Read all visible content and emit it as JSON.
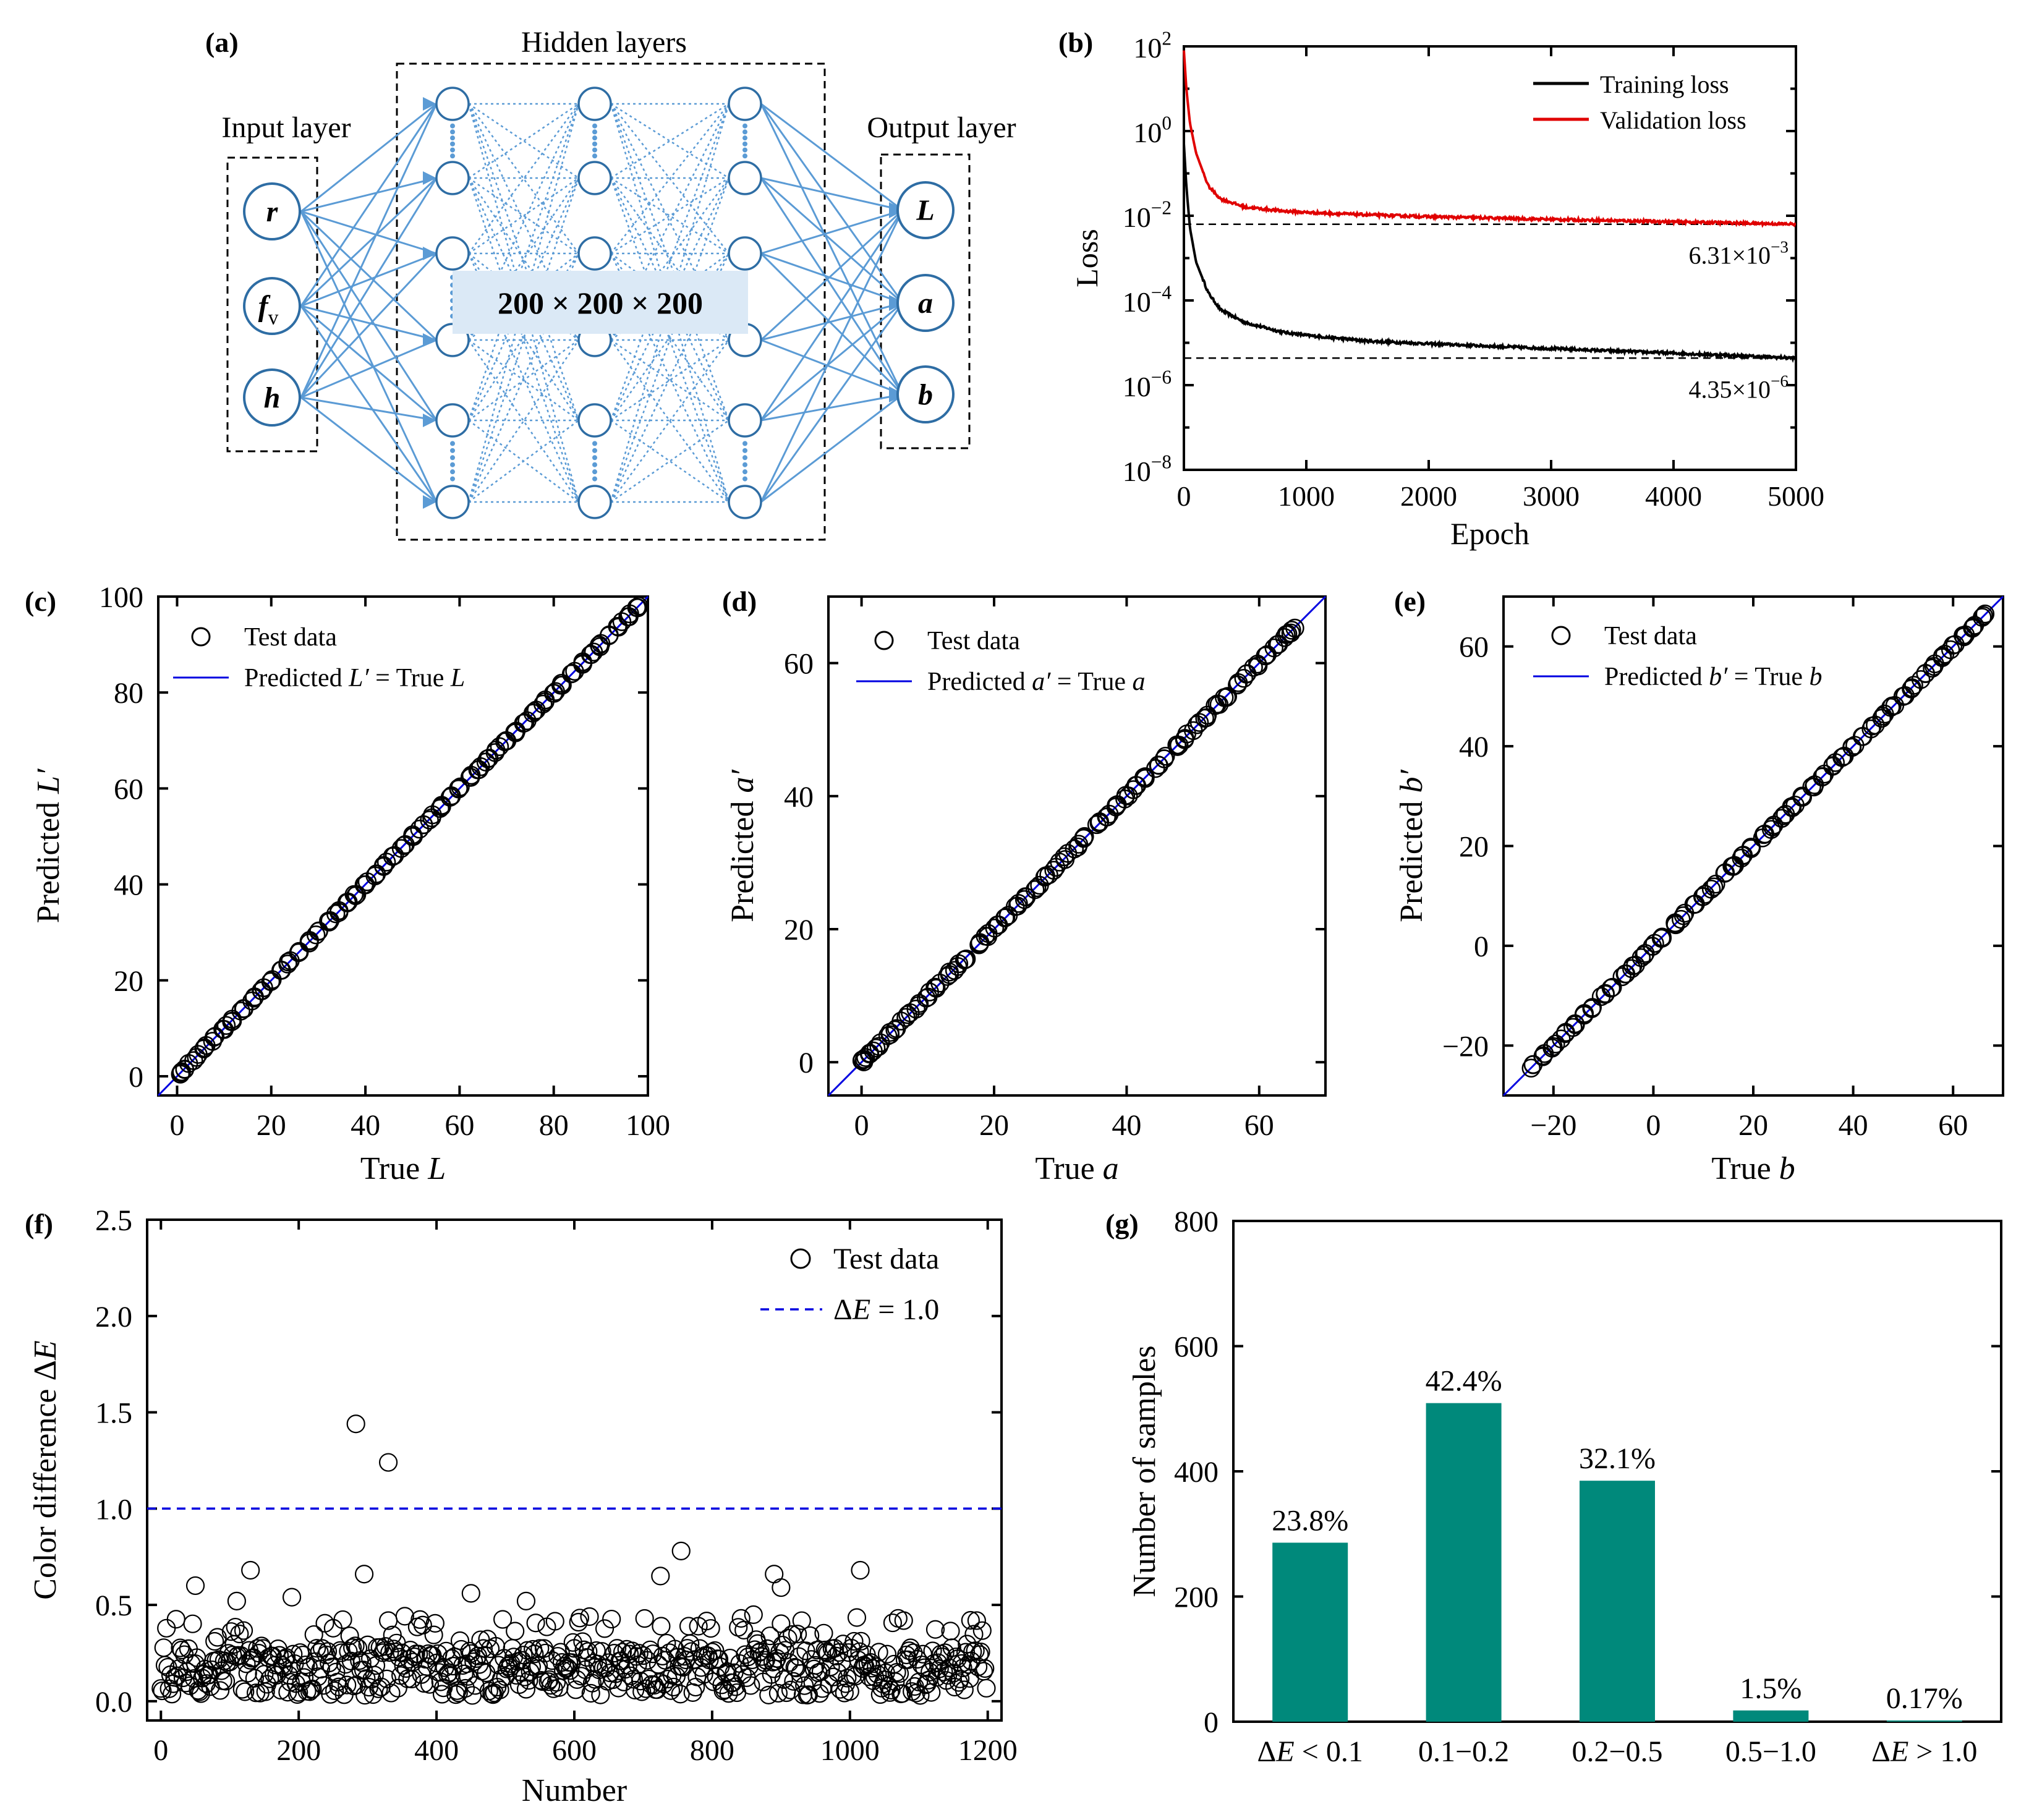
{
  "colors": {
    "net_blue": "#5b9bd5",
    "net_label_bg": "#dbe9f6",
    "training": "#000000",
    "validation": "#e00000",
    "fit_line": "#0000e0",
    "bar": "#00897b"
  },
  "panel_a": {
    "label": "(a)",
    "input_title": "Input layer",
    "hidden_title": "Hidden layers",
    "output_title": "Output layer",
    "hidden_size": "200 × 200 × 200",
    "inputs": [
      {
        "main": "r",
        "sub": ""
      },
      {
        "main": "f",
        "sub": "v"
      },
      {
        "main": "h",
        "sub": ""
      }
    ],
    "outputs": [
      "L",
      "a",
      "b"
    ]
  },
  "chart_data": [
    {
      "id": "b",
      "label": "(b)",
      "type": "line",
      "yscale": "log",
      "xlabel": "Epoch",
      "ylabel": "Loss",
      "xlim": [
        0,
        5000
      ],
      "ylim": [
        1e-08,
        100
      ],
      "xticks": [
        "0",
        "1000",
        "2000",
        "3000",
        "4000",
        "5000"
      ],
      "ytick_exponents": [
        "2",
        "0",
        "-2",
        "-4",
        "-6",
        "-8"
      ],
      "series": [
        {
          "name": "Training loss",
          "color": "#000000",
          "x": [
            0,
            20,
            50,
            100,
            200,
            300,
            500,
            800,
            1000,
            1500,
            2000,
            3000,
            4000,
            5000
          ],
          "y": [
            0.5,
            0.05,
            0.005,
            0.0008,
            0.00015,
            6e-05,
            3e-05,
            1.8e-05,
            1.5e-05,
            1.1e-05,
            9.5e-06,
            7.3e-06,
            5.7e-06,
            4.35e-06
          ]
        },
        {
          "name": "Validation loss",
          "color": "#e00000",
          "x": [
            0,
            20,
            50,
            100,
            200,
            300,
            500,
            800,
            1000,
            1500,
            2000,
            3000,
            4000,
            5000
          ],
          "y": [
            80,
            10,
            1.5,
            0.3,
            0.05,
            0.025,
            0.016,
            0.013,
            0.012,
            0.0105,
            0.0095,
            0.0082,
            0.0072,
            0.00631
          ]
        }
      ],
      "annotations": [
        {
          "value": 0.00631,
          "text": "6.31×10",
          "exp": "−3"
        },
        {
          "value": 4.35e-06,
          "text": "4.35×10",
          "exp": "−6"
        }
      ]
    },
    {
      "id": "c",
      "label": "(c)",
      "type": "scatter",
      "xlabel_main": "True ",
      "xlabel_var": "L",
      "ylabel_main": "Predicted ",
      "ylabel_var": "L′",
      "xlim": [
        -4,
        100
      ],
      "ylim": [
        -4,
        100
      ],
      "xticks": [
        0,
        20,
        40,
        60,
        80,
        100
      ],
      "yticks": [
        0,
        20,
        40,
        60,
        80,
        100
      ],
      "legend": {
        "scatter": "Test data",
        "line_main": "Predicted ",
        "line_var1": "L′",
        "line_mid": " = True ",
        "line_var2": "L"
      },
      "points": [
        0.5,
        2,
        4,
        6,
        8,
        10,
        12,
        14,
        16,
        18,
        20,
        22,
        24,
        26,
        28,
        30,
        32,
        34,
        36,
        38,
        40,
        42,
        44,
        46,
        48,
        50,
        52,
        54,
        56,
        58,
        60,
        62,
        64,
        66,
        68,
        70,
        72,
        74,
        76,
        78,
        80,
        82,
        84,
        86,
        88,
        90,
        92,
        94,
        96,
        98
      ]
    },
    {
      "id": "d",
      "label": "(d)",
      "type": "scatter",
      "xlabel_main": "True ",
      "xlabel_var": "a",
      "ylabel_main": "Predicted ",
      "ylabel_var": "a′",
      "xlim": [
        -5,
        70
      ],
      "ylim": [
        -5,
        70
      ],
      "xticks": [
        0,
        20,
        40,
        60
      ],
      "yticks": [
        0,
        20,
        40,
        60
      ],
      "legend": {
        "scatter": "Test data",
        "line_main": "Predicted ",
        "line_var1": "a′",
        "line_mid": " = True ",
        "line_var2": "a"
      },
      "points": [
        0.2,
        0.8,
        1.5,
        2.5,
        4,
        5.5,
        7,
        8.5,
        10,
        11.5,
        13,
        14.5,
        16,
        17.5,
        19,
        20.5,
        22,
        23.5,
        25,
        26.5,
        28,
        29.5,
        31,
        32.5,
        34,
        35.5,
        37,
        38.5,
        40,
        41.5,
        43,
        44.5,
        46,
        47.5,
        49,
        50.5,
        52,
        53.5,
        55,
        56.5,
        58,
        59.5,
        61,
        62.5,
        64,
        65
      ]
    },
    {
      "id": "e",
      "label": "(e)",
      "type": "scatter",
      "xlabel_main": "True ",
      "xlabel_var": "b",
      "ylabel_main": "Predicted ",
      "ylabel_var": "b′",
      "xlim": [
        -30,
        70
      ],
      "ylim": [
        -30,
        70
      ],
      "xticks": [
        -20,
        0,
        20,
        40,
        60
      ],
      "yticks": [
        -20,
        0,
        20,
        40,
        60
      ],
      "legend": {
        "scatter": "Test data",
        "line_main": "Predicted ",
        "line_var1": "b′",
        "line_mid": " = True ",
        "line_var2": "b"
      },
      "points": [
        -24,
        -22,
        -20,
        -18,
        -16,
        -14,
        -12,
        -10,
        -8,
        -6,
        -4,
        -2,
        0,
        2,
        4,
        6,
        8,
        10,
        12,
        14,
        16,
        18,
        20,
        22,
        24,
        26,
        28,
        30,
        32,
        34,
        36,
        38,
        40,
        42,
        44,
        46,
        48,
        50,
        52,
        54,
        56,
        58,
        60,
        62,
        64,
        66
      ]
    },
    {
      "id": "f",
      "label": "(f)",
      "type": "scatter",
      "xlabel": "Number",
      "ylabel_main": "Color difference Δ",
      "ylabel_var": "E",
      "xlim": [
        -20,
        1220
      ],
      "ylim": [
        -0.1,
        2.5
      ],
      "xticks": [
        0,
        200,
        400,
        600,
        800,
        1000,
        1200
      ],
      "yticks": [
        "0.0",
        "0.5",
        "1.0",
        "1.5",
        "2.0",
        "2.5"
      ],
      "legend": {
        "scatter": "Test data",
        "line_main": "Δ",
        "line_var": "E",
        "line_rest": " = 1.0"
      },
      "threshold": 1.0,
      "n_points": 1200,
      "outliers": [
        {
          "x": 283,
          "y": 1.44
        },
        {
          "x": 330,
          "y": 1.24
        },
        {
          "x": 755,
          "y": 0.78
        },
        {
          "x": 1015,
          "y": 0.68
        },
        {
          "x": 130,
          "y": 0.68
        },
        {
          "x": 295,
          "y": 0.66
        },
        {
          "x": 725,
          "y": 0.65
        },
        {
          "x": 890,
          "y": 0.66
        },
        {
          "x": 50,
          "y": 0.6
        },
        {
          "x": 900,
          "y": 0.59
        },
        {
          "x": 450,
          "y": 0.56
        },
        {
          "x": 190,
          "y": 0.54
        },
        {
          "x": 110,
          "y": 0.52
        },
        {
          "x": 530,
          "y": 0.52
        },
        {
          "x": 1175,
          "y": 0.42
        }
      ]
    },
    {
      "id": "g",
      "label": "(g)",
      "type": "bar",
      "ylabel": "Number of samples",
      "ylim": [
        0,
        800
      ],
      "yticks": [
        0,
        200,
        400,
        600,
        800
      ],
      "categories": [
        {
          "pre": "Δ",
          "var": "E",
          "post": " < 0.1"
        },
        {
          "pre": "0.1−0.2",
          "var": "",
          "post": ""
        },
        {
          "pre": "0.2−0.5",
          "var": "",
          "post": ""
        },
        {
          "pre": "0.5−1.0",
          "var": "",
          "post": ""
        },
        {
          "pre": "Δ",
          "var": "E",
          "post": " > 1.0"
        }
      ],
      "values": [
        286,
        509,
        385,
        18,
        2
      ],
      "labels": [
        "23.8%",
        "42.4%",
        "32.1%",
        "1.5%",
        "0.17%"
      ]
    }
  ]
}
